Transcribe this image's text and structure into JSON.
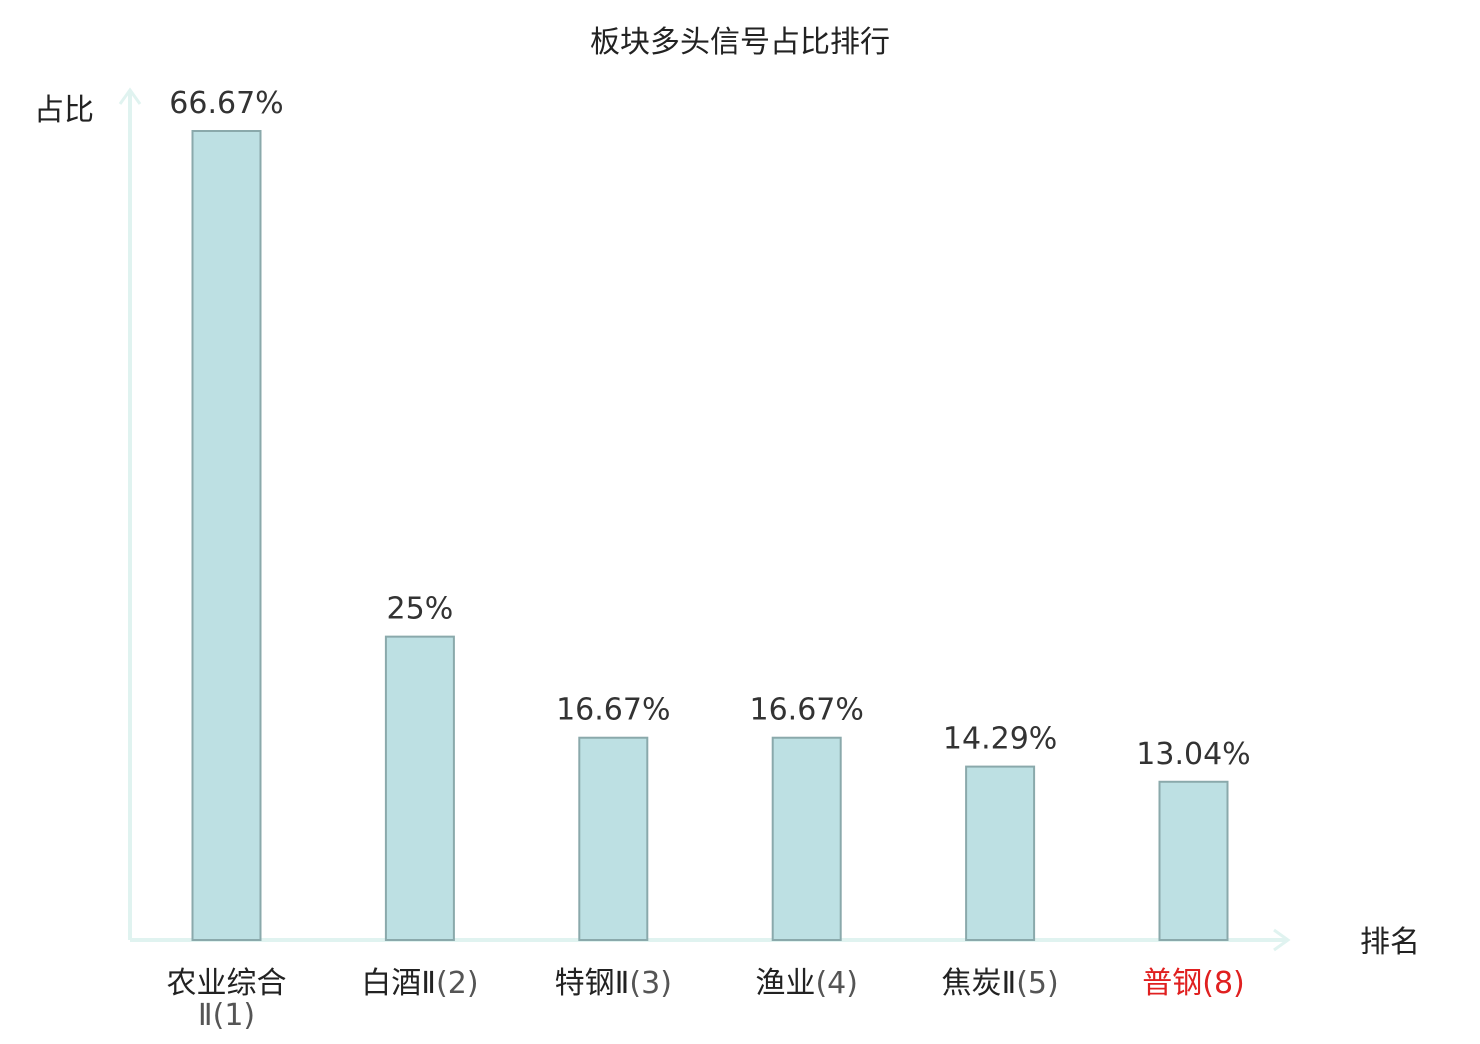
{
  "chart_data": {
    "type": "bar",
    "title": "板块多头信号占比排行",
    "xlabel": "排名",
    "ylabel": "占比",
    "categories": [
      {
        "name": "农业综合Ⅱ",
        "rank": "(1)",
        "highlight": false
      },
      {
        "name": "白酒Ⅱ",
        "rank": "(2)",
        "highlight": false
      },
      {
        "name": "特钢Ⅱ",
        "rank": "(3)",
        "highlight": false
      },
      {
        "name": "渔业",
        "rank": "(4)",
        "highlight": false
      },
      {
        "name": "焦炭Ⅱ",
        "rank": "(5)",
        "highlight": false
      },
      {
        "name": "普钢",
        "rank": "(8)",
        "highlight": true
      }
    ],
    "values": [
      66.67,
      25,
      16.67,
      16.67,
      14.29,
      13.04
    ],
    "value_labels": [
      "66.67%",
      "25%",
      "16.67%",
      "16.67%",
      "14.29%",
      "13.04%"
    ],
    "ylim": [
      0,
      66.67
    ],
    "grid": false,
    "colors": {
      "bar_fill": "#bde0e3",
      "bar_stroke": "#8aa9ab",
      "axis": "#e0f3f0",
      "text": "#222222",
      "value_text": "#333333",
      "highlight_text": "#e02020"
    }
  }
}
